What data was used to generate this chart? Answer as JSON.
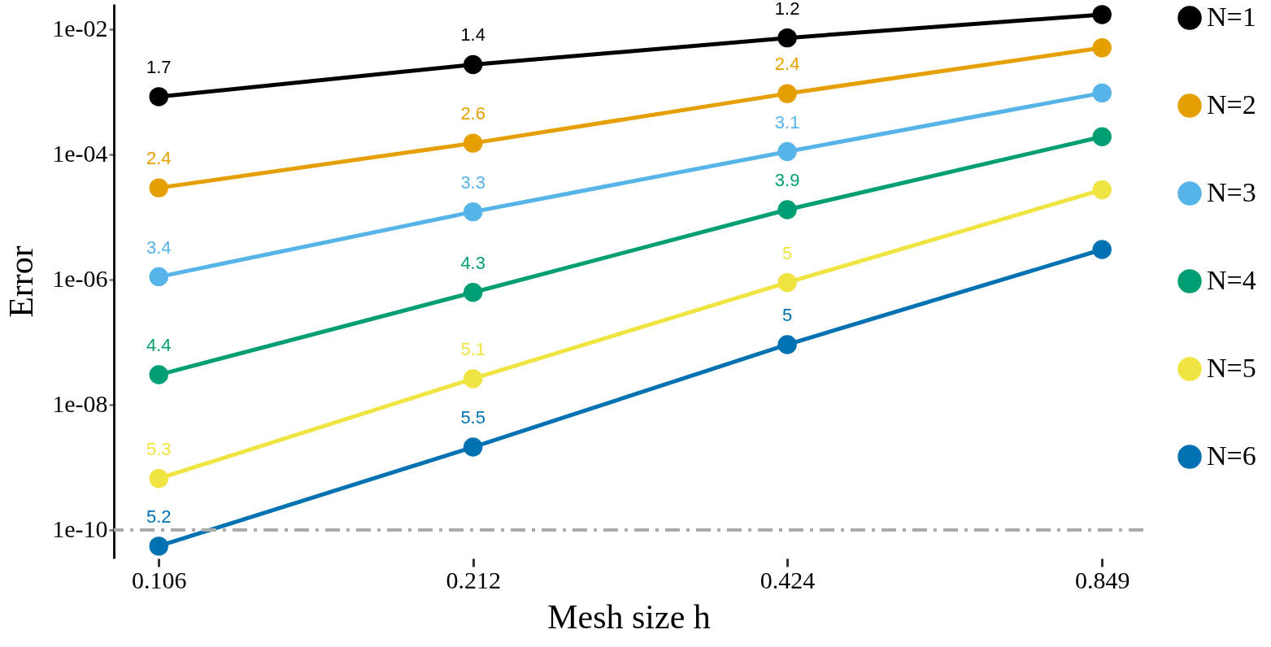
{
  "chart_data": {
    "type": "line",
    "xlabel": "Mesh size h",
    "ylabel": "Error",
    "log": "xy",
    "x": [
      0.106,
      0.212,
      0.424,
      0.849
    ],
    "xlim": [
      0.096,
      0.93
    ],
    "xticks": [
      0.106,
      0.212,
      0.424,
      0.849
    ],
    "ylim": [
      3.5e-11,
      0.025
    ],
    "yticks": [
      {
        "value": 0.01,
        "label": "1e-02"
      },
      {
        "value": 0.0001,
        "label": "1e-04"
      },
      {
        "value": 1e-06,
        "label": "1e-06"
      },
      {
        "value": 1e-08,
        "label": "1e-08"
      },
      {
        "value": 1e-10,
        "label": "1e-10"
      }
    ],
    "series": [
      {
        "name": "N=1",
        "color": "#000000",
        "values": [
          0.00083,
          0.0027,
          0.0072,
          0.017
        ]
      },
      {
        "name": "N=2",
        "color": "#e69f00",
        "values": [
          2.9e-05,
          0.00015,
          0.00093,
          0.005
        ]
      },
      {
        "name": "N=3",
        "color": "#56b4e9",
        "values": [
          1.1e-06,
          1.2e-05,
          0.00011,
          0.00095
        ]
      },
      {
        "name": "N=4",
        "color": "#009e73",
        "values": [
          3e-08,
          6.2e-07,
          1.3e-05,
          0.00019
        ]
      },
      {
        "name": "N=5",
        "color": "#f0e442",
        "values": [
          6.6e-10,
          2.6e-08,
          8.9e-07,
          2.7e-05
        ]
      },
      {
        "name": "N=6",
        "color": "#0072b2",
        "values": [
          5.5e-11,
          2.1e-09,
          9.1e-08,
          3e-06
        ]
      }
    ],
    "annotations": [
      {
        "text": "1.7",
        "x": 0.106,
        "y": 0.00083
      },
      {
        "text": "1.4",
        "x": 0.212,
        "y": 0.0027
      },
      {
        "text": "1.2",
        "x": 0.424,
        "y": 0.0072
      },
      {
        "text": "2.4",
        "x": 0.106,
        "y": 2.9e-05
      },
      {
        "text": "2.6",
        "x": 0.212,
        "y": 0.00015
      },
      {
        "text": "2.4",
        "x": 0.424,
        "y": 0.00093
      },
      {
        "text": "3.4",
        "x": 0.106,
        "y": 1.1e-06
      },
      {
        "text": "3.3",
        "x": 0.212,
        "y": 1.2e-05
      },
      {
        "text": "3.1",
        "x": 0.424,
        "y": 0.00011
      },
      {
        "text": "4.4",
        "x": 0.106,
        "y": 3e-08
      },
      {
        "text": "4.3",
        "x": 0.212,
        "y": 6.2e-07
      },
      {
        "text": "3.9",
        "x": 0.424,
        "y": 1.3e-05
      },
      {
        "text": "5.3",
        "x": 0.106,
        "y": 6.6e-10
      },
      {
        "text": "5.1",
        "x": 0.212,
        "y": 2.6e-08
      },
      {
        "text": "5",
        "x": 0.424,
        "y": 8.9e-07
      },
      {
        "text": "5.2",
        "x": 0.106,
        "y": 5.5e-11
      },
      {
        "text": "5.5",
        "x": 0.212,
        "y": 2.1e-09
      },
      {
        "text": "5",
        "x": 0.424,
        "y": 9.1e-08
      }
    ],
    "ref_lines": [
      {
        "axis": "y",
        "value": 1e-10,
        "color": "#aaaaaa",
        "line_style": "dashed"
      }
    ],
    "marker": "circle",
    "line_style": "solid",
    "grid": false,
    "legend": "right"
  }
}
